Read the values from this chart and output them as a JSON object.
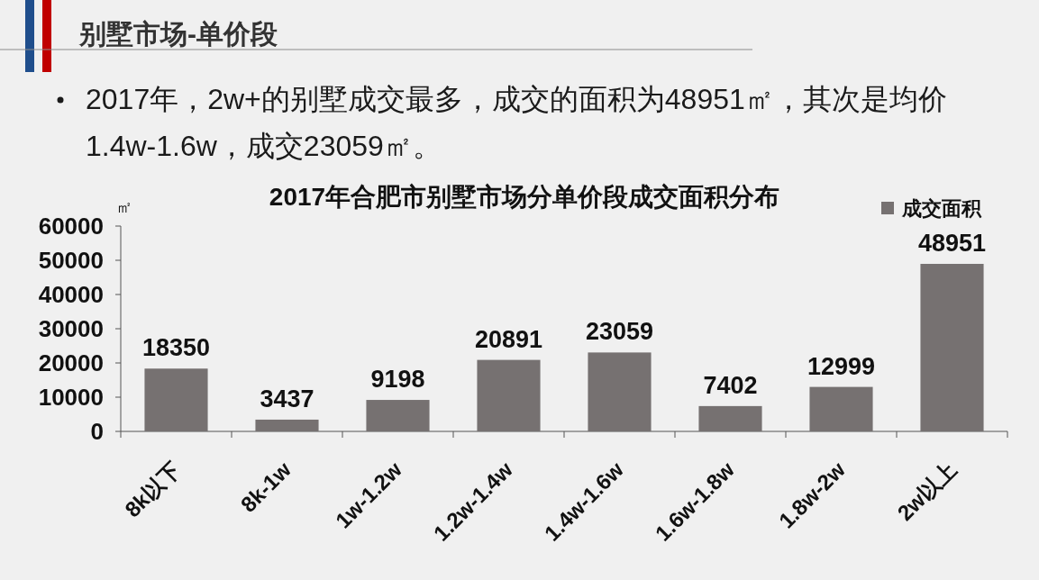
{
  "chart_data": {
    "type": "bar",
    "title": "2017年合肥市别墅市场分单价段成交面积分布",
    "ylabel": "㎡",
    "categories": [
      "8k以下",
      "8k-1w",
      "1w-1.2w",
      "1.2w-1.4w",
      "1.4w-1.6w",
      "1.6w-1.8w",
      "1.8w-2w",
      "2w以上"
    ],
    "series": [
      {
        "name": "成交面积",
        "color": "#767171",
        "values": [
          18350,
          3437,
          9198,
          20891,
          23059,
          7402,
          12999,
          48951
        ]
      }
    ],
    "ylim": [
      0,
      60000
    ],
    "yticks": [
      0,
      10000,
      20000,
      30000,
      40000,
      50000,
      60000
    ],
    "data_labels": true,
    "legend": "top right",
    "grid": false,
    "annotations": [
      "别墅市场-单价段",
      "2017年，2w+的别墅成交最多，成交的面积为48951㎡，其次是均价1.4w-1.6w，成交23059㎡。"
    ]
  }
}
